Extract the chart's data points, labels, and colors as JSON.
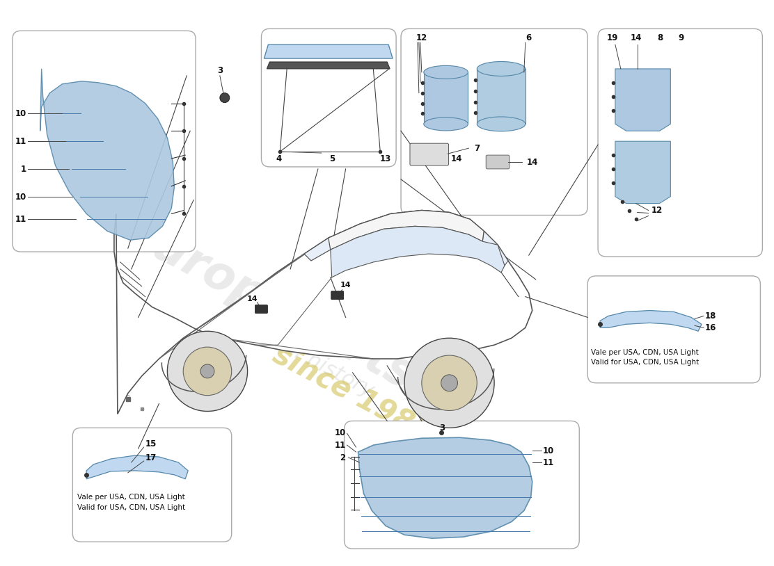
{
  "bg_color": "#ffffff",
  "line_color": "#444444",
  "light_blue": "#adc8e0",
  "light_blue2": "#c0d8f0",
  "light_blue3": "#b0cce0",
  "box_edge": "#aaaaaa",
  "box_face": "#ffffff",
  "wm1": "europaparts",
  "wm2": "a part of history",
  "wm3": "since 1985",
  "wm_color1": "#bbbbbb",
  "wm_color2": "#bbbbbb",
  "wm_color3": "#ccbb44"
}
